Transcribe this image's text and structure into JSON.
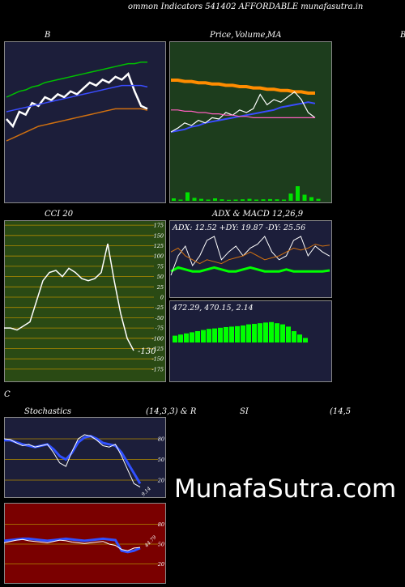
{
  "header": {
    "title": "ommon  Indicators 541402  AFFORDABLE munafasutra.in"
  },
  "labels": {
    "bb": "B",
    "price": "Price,",
    "price_overlay": "Volume,",
    "price_ma": "MA",
    "edge_right": "B",
    "cci": "CCI 20",
    "adx_macd": "ADX  & MACD 12,26,9",
    "edge_left": "C",
    "stoch": "Stochastics",
    "stoch_params": "(14,3,3) & R",
    "si": "SI",
    "si_params": "(14,5"
  },
  "watermark": "MunafaSutra.com",
  "colors": {
    "navy": "#1c1e3a",
    "green_panel": "#1d3d1d",
    "olive_panel": "#2a4a14",
    "red_panel": "#7a0000"
  },
  "chart_data": [
    {
      "type": "line",
      "panel": "bollinger",
      "series": [
        {
          "color": "#ffffff",
          "values": [
            0.55,
            0.5,
            0.6,
            0.58,
            0.66,
            0.64,
            0.7,
            0.68,
            0.72,
            0.7,
            0.74,
            0.72,
            0.76,
            0.8,
            0.78,
            0.82,
            0.8,
            0.84,
            0.82,
            0.86,
            0.74,
            0.64,
            0.62
          ]
        },
        {
          "color": "#00c000",
          "values": [
            0.7,
            0.72,
            0.74,
            0.75,
            0.77,
            0.78,
            0.8,
            0.81,
            0.82,
            0.83,
            0.84,
            0.85,
            0.86,
            0.87,
            0.88,
            0.89,
            0.9,
            0.91,
            0.92,
            0.93,
            0.93,
            0.94,
            0.94
          ]
        },
        {
          "color": "#3a4cff",
          "values": [
            0.6,
            0.61,
            0.62,
            0.63,
            0.64,
            0.65,
            0.66,
            0.67,
            0.68,
            0.69,
            0.7,
            0.71,
            0.72,
            0.73,
            0.74,
            0.75,
            0.76,
            0.77,
            0.78,
            0.78,
            0.78,
            0.78,
            0.77
          ]
        },
        {
          "color": "#d07010",
          "values": [
            0.4,
            0.42,
            0.44,
            0.46,
            0.48,
            0.5,
            0.51,
            0.52,
            0.53,
            0.54,
            0.55,
            0.56,
            0.57,
            0.58,
            0.59,
            0.6,
            0.61,
            0.62,
            0.62,
            0.62,
            0.62,
            0.62,
            0.61
          ]
        }
      ]
    },
    {
      "type": "line",
      "panel": "price",
      "series": [
        {
          "color": "#ff8c00",
          "values": [
            0.95,
            0.95,
            0.94,
            0.94,
            0.93,
            0.93,
            0.92,
            0.92,
            0.91,
            0.91,
            0.9,
            0.9,
            0.89,
            0.89,
            0.88,
            0.88,
            0.87,
            0.87,
            0.86,
            0.86,
            0.85,
            0.85
          ]
        },
        {
          "color": "#3a4cff",
          "values": [
            0.55,
            0.56,
            0.57,
            0.59,
            0.6,
            0.62,
            0.63,
            0.64,
            0.65,
            0.66,
            0.67,
            0.68,
            0.69,
            0.7,
            0.71,
            0.72,
            0.74,
            0.75,
            0.76,
            0.77,
            0.78,
            0.77
          ]
        },
        {
          "color": "#ffffff",
          "values": [
            0.55,
            0.58,
            0.62,
            0.6,
            0.64,
            0.62,
            0.66,
            0.65,
            0.7,
            0.68,
            0.72,
            0.7,
            0.73,
            0.84,
            0.76,
            0.8,
            0.78,
            0.82,
            0.86,
            0.8,
            0.7,
            0.66
          ]
        },
        {
          "color": "#ff60c0",
          "values": [
            0.72,
            0.72,
            0.71,
            0.71,
            0.7,
            0.7,
            0.69,
            0.69,
            0.68,
            0.68,
            0.67,
            0.67,
            0.66,
            0.66,
            0.66,
            0.66,
            0.66,
            0.66,
            0.66,
            0.66,
            0.66,
            0.66
          ]
        }
      ],
      "volume": [
        0.1,
        0.05,
        0.35,
        0.12,
        0.08,
        0.05,
        0.1,
        0.06,
        0.04,
        0.05,
        0.06,
        0.08,
        0.05,
        0.06,
        0.07,
        0.06,
        0.05,
        0.3,
        0.6,
        0.25,
        0.15,
        0.08
      ]
    },
    {
      "type": "line",
      "panel": "cci",
      "yticks": [
        175,
        150,
        125,
        100,
        75,
        50,
        25,
        0,
        -25,
        -50,
        -75,
        -100,
        -125,
        -150,
        -175
      ],
      "value_label": "-130",
      "series": [
        {
          "color": "#ffffff",
          "values": [
            -75,
            -75,
            -80,
            -70,
            -60,
            -10,
            40,
            60,
            65,
            50,
            70,
            60,
            45,
            40,
            45,
            60,
            130,
            40,
            -40,
            -100,
            -130
          ]
        }
      ]
    },
    {
      "type": "line",
      "panel": "adx",
      "readout": "ADX: 12.52  +DY: 19.87 -DY: 25.56",
      "series": [
        {
          "name": "ADX",
          "color": "#00ff00",
          "values": [
            12,
            14,
            13,
            12,
            12,
            13,
            14,
            13,
            12,
            12,
            13,
            14,
            13,
            12,
            12,
            12,
            13,
            12,
            12,
            12,
            12,
            12,
            12.5
          ]
        },
        {
          "name": "+DY",
          "color": "#ffffff",
          "values": [
            10,
            20,
            25,
            15,
            20,
            28,
            30,
            18,
            22,
            25,
            20,
            24,
            26,
            30,
            22,
            18,
            20,
            28,
            30,
            20,
            25,
            22,
            19.87
          ]
        },
        {
          "name": "-DY",
          "color": "#d07010",
          "values": [
            22,
            24,
            20,
            18,
            16,
            18,
            17,
            16,
            18,
            19,
            20,
            22,
            20,
            18,
            19,
            20,
            22,
            24,
            23,
            24,
            26,
            25,
            25.56
          ]
        }
      ]
    },
    {
      "type": "bar",
      "panel": "macd",
      "readout": "472.29,  470.15,  2.14",
      "hist": [
        0.3,
        0.35,
        0.4,
        0.45,
        0.5,
        0.55,
        0.6,
        0.62,
        0.65,
        0.68,
        0.7,
        0.72,
        0.75,
        0.8,
        0.82,
        0.85,
        0.88,
        0.9,
        0.85,
        0.8,
        0.7,
        0.5,
        0.35,
        0.2
      ]
    },
    {
      "type": "line",
      "panel": "stochastics",
      "yticks": [
        80,
        50,
        20
      ],
      "series": [
        {
          "color": "#3050ff",
          "values": [
            78,
            78,
            75,
            72,
            70,
            68,
            70,
            72,
            65,
            55,
            50,
            60,
            75,
            82,
            84,
            80,
            74,
            72,
            70,
            60,
            45,
            30,
            15
          ]
        },
        {
          "color": "#ffffff",
          "values": [
            80,
            79,
            74,
            70,
            72,
            68,
            70,
            72,
            60,
            45,
            40,
            62,
            80,
            86,
            84,
            78,
            70,
            68,
            72,
            55,
            35,
            15,
            10
          ]
        }
      ],
      "end_label": "9.14"
    },
    {
      "type": "line",
      "panel": "rsi",
      "yticks": [
        80,
        50,
        20
      ],
      "series": [
        {
          "color": "#3050ff",
          "values": [
            55,
            56,
            57,
            58,
            58,
            57,
            56,
            55,
            56,
            57,
            58,
            57,
            56,
            55,
            56,
            57,
            58,
            57,
            56,
            40,
            38,
            40,
            44
          ]
        },
        {
          "color": "#ffffff",
          "values": [
            52,
            54,
            56,
            57,
            55,
            54,
            53,
            52,
            54,
            56,
            55,
            53,
            52,
            51,
            52,
            53,
            54,
            50,
            48,
            42,
            40,
            44,
            45
          ]
        }
      ],
      "end_label": "44.79"
    }
  ]
}
